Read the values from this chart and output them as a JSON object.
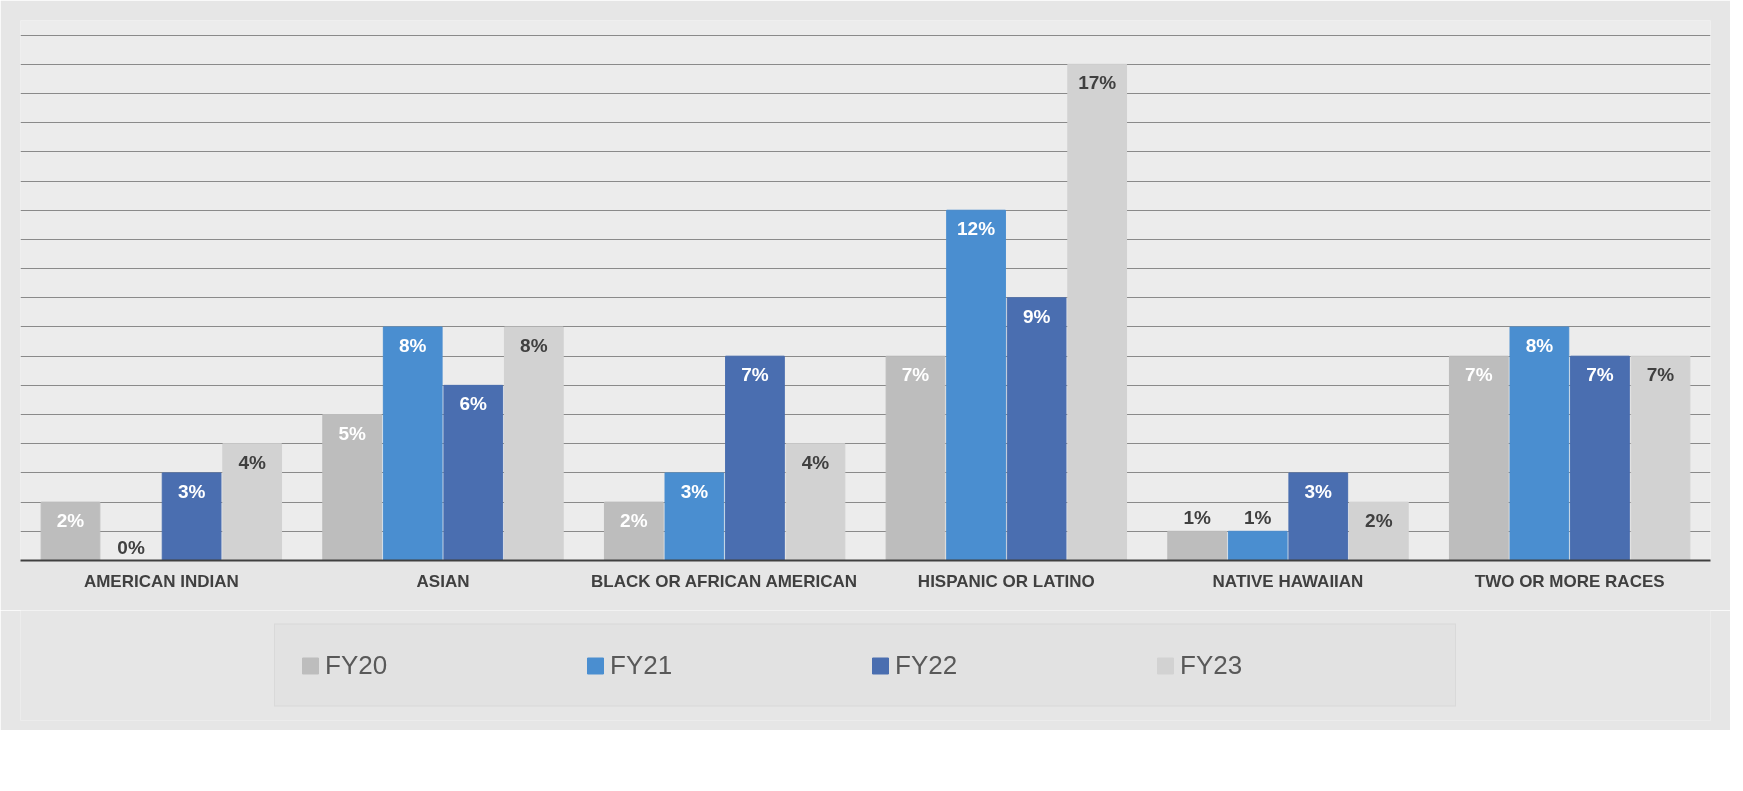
{
  "chart_data": {
    "type": "bar",
    "categories": [
      "AMERICAN INDIAN",
      "ASIAN",
      "BLACK OR AFRICAN AMERICAN",
      "HISPANIC OR LATINO",
      "NATIVE HAWAIIAN",
      "TWO OR MORE RACES"
    ],
    "series": [
      {
        "name": "FY20",
        "color": "#bdbdbd",
        "values": [
          2,
          5,
          2,
          7,
          1,
          7
        ],
        "value_labels": [
          "2%",
          "5%",
          "2%",
          "7%",
          "1%",
          "7%"
        ]
      },
      {
        "name": "FY21",
        "color": "#4a8ed0",
        "values": [
          0,
          8,
          3,
          12,
          1,
          8
        ],
        "value_labels": [
          "0%",
          "8%",
          "3%",
          "12%",
          "1%",
          "8%"
        ]
      },
      {
        "name": "FY22",
        "color": "#4a6eb0",
        "values": [
          3,
          6,
          7,
          9,
          3,
          7
        ],
        "value_labels": [
          "3%",
          "6%",
          "7%",
          "9%",
          "3%",
          "7%"
        ]
      },
      {
        "name": "FY23",
        "color": "#d2d2d2",
        "values": [
          4,
          8,
          4,
          17,
          2,
          7
        ],
        "value_labels": [
          "4%",
          "8%",
          "4%",
          "17%",
          "2%",
          "7%"
        ]
      }
    ],
    "ylim": [
      0,
      18.5
    ],
    "yticks": [
      {
        "value": 0,
        "label": null
      },
      {
        "value": 1,
        "label": null
      },
      {
        "value": 2,
        "label": null
      },
      {
        "value": 3,
        "label": null
      },
      {
        "value": 4,
        "label": null
      },
      {
        "value": 5,
        "label": null
      },
      {
        "value": 6,
        "label": null
      },
      {
        "value": 7,
        "label": null
      },
      {
        "value": 8,
        "label": null
      },
      {
        "value": 9,
        "label": null
      },
      {
        "value": 10,
        "label": null
      },
      {
        "value": 11,
        "label": null
      },
      {
        "value": 12,
        "label": null
      },
      {
        "value": 13,
        "label": null
      },
      {
        "value": 14,
        "label": null
      },
      {
        "value": 15,
        "label": null
      },
      {
        "value": 16,
        "label": null
      },
      {
        "value": 17,
        "label": null
      },
      {
        "value": 18,
        "label": null
      }
    ],
    "grid": "y",
    "legend": "bottom",
    "tick_labels": "x"
  }
}
